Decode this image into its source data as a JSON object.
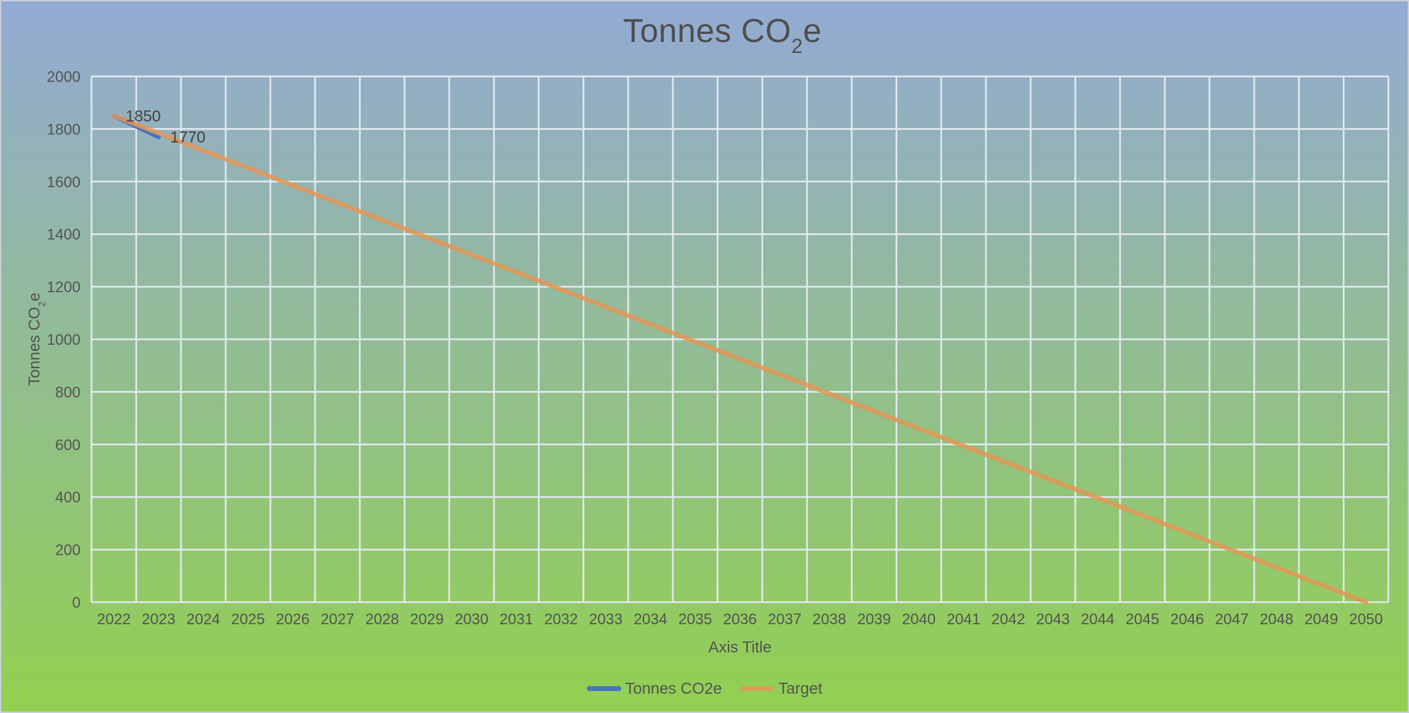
{
  "chart": {
    "title": {
      "prefix": "Tonnes CO",
      "sub": "2",
      "suffix": "e"
    },
    "y_axis_title": {
      "prefix": "Tonnes CO",
      "sub": "2",
      "suffix": "e"
    },
    "x_axis_title": "Axis Title"
  },
  "colors": {
    "background_top": "#93AAD4",
    "background_bottom": "#92D050",
    "gridline": "#E2E9EF",
    "tick_text": "#525252",
    "title_text": "#4E4E4E",
    "data_label_text": "#404040",
    "border": "#C9CFD5",
    "series_tonnes_co2e": "#4472C4",
    "series_target": "#E49656"
  },
  "chart_data": {
    "type": "line",
    "title": "Tonnes CO2e",
    "xlabel": "Axis Title",
    "ylabel": "Tonnes CO2e",
    "x": [
      2022,
      2023,
      2024,
      2025,
      2026,
      2027,
      2028,
      2029,
      2030,
      2031,
      2032,
      2033,
      2034,
      2035,
      2036,
      2037,
      2038,
      2039,
      2040,
      2041,
      2042,
      2043,
      2044,
      2045,
      2046,
      2047,
      2048,
      2049,
      2050
    ],
    "ylim": [
      0,
      2000
    ],
    "yticks": [
      0,
      200,
      400,
      600,
      800,
      1000,
      1200,
      1400,
      1600,
      1800,
      2000
    ],
    "grid": true,
    "legend_position": "bottom",
    "series": [
      {
        "id": "tonnes-co2e",
        "name": "Tonnes CO2e",
        "color": "#4472C4",
        "opacity": 1,
        "show_data_labels": true,
        "x": [
          2022,
          2023
        ],
        "values": [
          1850,
          1770
        ]
      },
      {
        "id": "target",
        "name": "Target",
        "color": "#E49656",
        "opacity": 0.85,
        "show_data_labels": false,
        "x": [
          2022,
          2023,
          2024,
          2025,
          2026,
          2027,
          2028,
          2029,
          2030,
          2031,
          2032,
          2033,
          2034,
          2035,
          2036,
          2037,
          2038,
          2039,
          2040,
          2041,
          2042,
          2043,
          2044,
          2045,
          2046,
          2047,
          2048,
          2049,
          2050
        ],
        "values": [
          1850,
          1783.9,
          1717.9,
          1651.8,
          1585.7,
          1519.6,
          1453.6,
          1387.5,
          1321.4,
          1255.4,
          1189.3,
          1123.2,
          1057.1,
          991.1,
          925,
          858.9,
          792.9,
          726.8,
          660.7,
          594.6,
          528.6,
          462.5,
          396.4,
          330.4,
          264.3,
          198.2,
          132.1,
          66.1,
          0
        ]
      }
    ]
  }
}
